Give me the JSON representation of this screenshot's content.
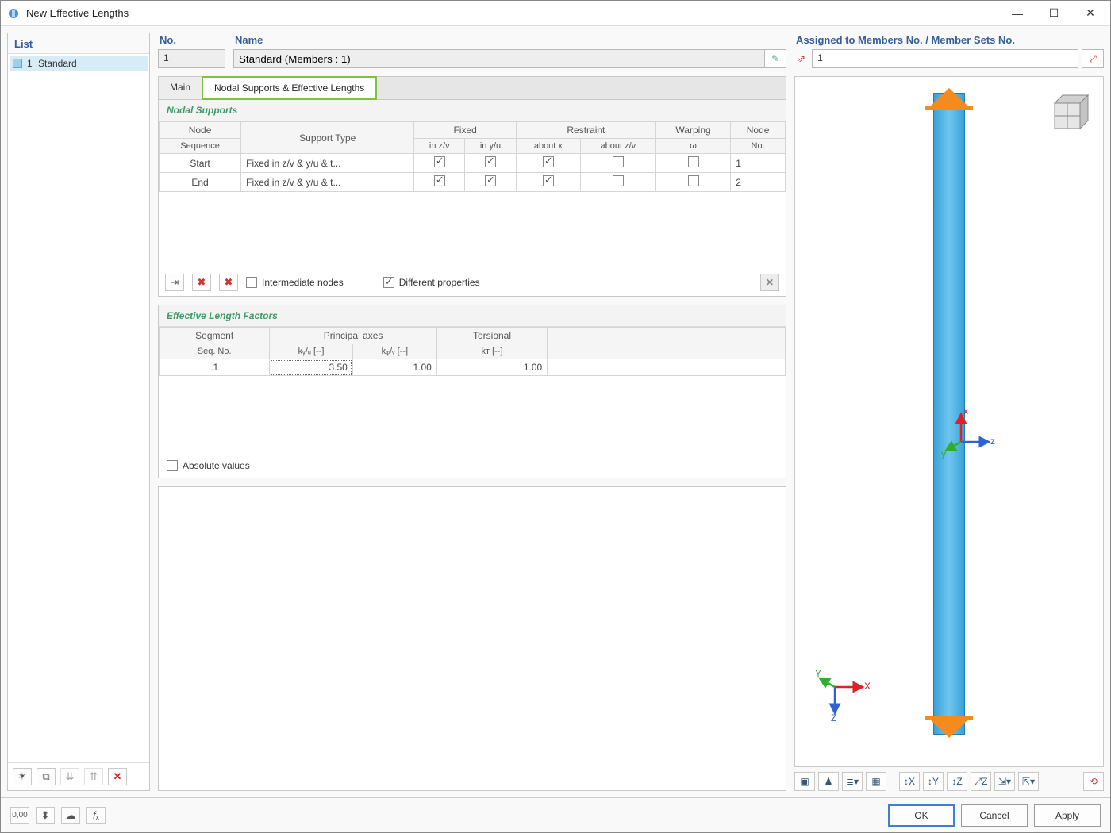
{
  "window": {
    "title": "New Effective Lengths"
  },
  "list": {
    "header": "List",
    "items": [
      {
        "index": "1",
        "name": "Standard"
      }
    ]
  },
  "fields": {
    "no_label": "No.",
    "no_value": "1",
    "name_label": "Name",
    "name_value": "Standard (Members : 1)",
    "assigned_label": "Assigned to Members No. / Member Sets No.",
    "assigned_value": "1"
  },
  "tabs": {
    "main": "Main",
    "supports": "Nodal Supports & Effective Lengths"
  },
  "supports": {
    "title": "Nodal Supports",
    "headers": {
      "node_seq_top": "Node",
      "node_seq_bot": "Sequence",
      "support_type": "Support Type",
      "fixed": "Fixed",
      "fixed_zv": "in z/v",
      "fixed_yu": "in y/u",
      "restraint": "Restraint",
      "about_x": "about x",
      "about_zv": "about z/v",
      "warping": "Warping",
      "omega": "ω",
      "node_no_top": "Node",
      "node_no_bot": "No."
    },
    "rows": [
      {
        "seq": "Start",
        "type": "Fixed in z/v & y/u & t...",
        "zv": true,
        "yu": true,
        "ax": true,
        "azv": false,
        "w": false,
        "node": "1"
      },
      {
        "seq": "End",
        "type": "Fixed in z/v & y/u & t...",
        "zv": true,
        "yu": true,
        "ax": true,
        "azv": false,
        "w": false,
        "node": "2"
      }
    ],
    "intermediate_label": "Intermediate nodes",
    "intermediate_checked": false,
    "different_label": "Different properties",
    "different_checked": true
  },
  "factors": {
    "title": "Effective Length Factors",
    "headers": {
      "segment_top": "Segment",
      "segment_bot": "Seq. No.",
      "principal": "Principal axes",
      "kyu": "kᵧ/ᵤ [--]",
      "kzv": "kᵩ/ᵥ [--]",
      "torsional": "Torsional",
      "kt": "kᴛ [--]"
    },
    "rows": [
      {
        "seg": ".1",
        "kyu": "3.50",
        "kzv": "1.00",
        "kt": "1.00"
      }
    ],
    "absolute_label": "Absolute values",
    "absolute_checked": false
  },
  "buttons": {
    "ok": "OK",
    "cancel": "Cancel",
    "apply": "Apply"
  },
  "axes": {
    "x": "x",
    "y": "y",
    "z": "z",
    "X": "X",
    "Y": "Y",
    "Z": "Z"
  },
  "colors": {
    "beam": "#4fb7e8",
    "support": "#f58a1f",
    "axis_x": "#d8232a",
    "axis_y": "#2fae2f",
    "axis_z": "#2e63d6"
  }
}
